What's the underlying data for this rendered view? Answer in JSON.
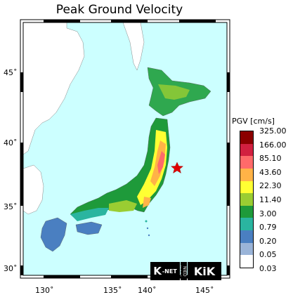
{
  "title": "Peak Ground Velocity",
  "axes": {
    "lat_labels": [
      "45˚",
      "40˚",
      "35˚",
      "30˚"
    ],
    "lon_labels": [
      "130˚",
      "135˚",
      "140˚",
      "145˚"
    ]
  },
  "legend": {
    "title": "PGV [cm/s]",
    "labels": [
      "325.00",
      "166.00",
      "85.10",
      "43.60",
      "22.30",
      "11.40",
      "3.00",
      "0.79",
      "0.20",
      "0.05",
      "0.03"
    ],
    "colors": [
      "#8b0000",
      "#d22040",
      "#ff6a6a",
      "#ffb347",
      "#ffff33",
      "#9acd32",
      "#1e9a3a",
      "#2ab5a0",
      "#4a7fc1",
      "#9ab4d8",
      "#ffffff"
    ]
  },
  "epicenter": {
    "icon": "red-star-icon",
    "color": "#e00000"
  },
  "colors": {
    "sea": "#ccffff",
    "land_low": "#4a7fc1",
    "land_mid": "#1e9a3a",
    "land_high": "#ffb347"
  },
  "logos": {
    "knet_main": "K",
    "knet_small": "-NET",
    "ned": "NIED Japan",
    "kik": "KiK"
  }
}
